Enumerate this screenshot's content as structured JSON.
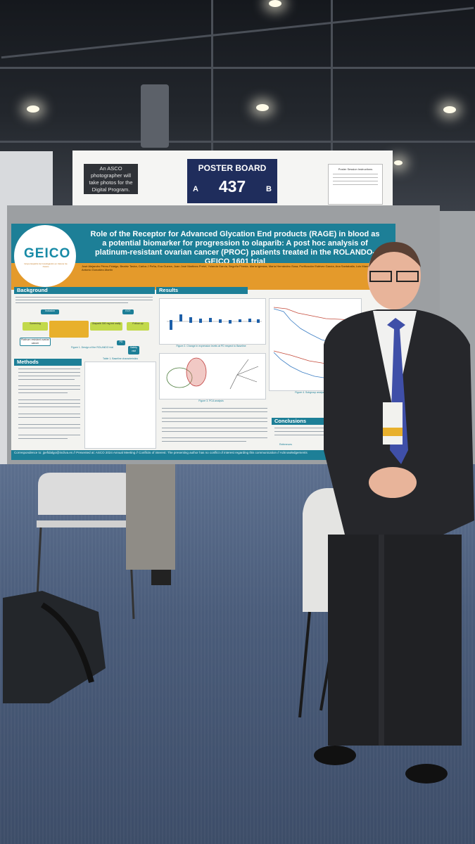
{
  "header_board": {
    "photo_note": "An ASCO photographer will take photos for the Digital Program.",
    "board_title": "POSTER BOARD",
    "board_number": "437",
    "left_letter": "A",
    "right_letter": "B",
    "notice_title": "Poster Session Instructions"
  },
  "poster": {
    "logo": "GEICO",
    "logo_tagline": "Grupo Español de Investigación en Cáncer de Ovario",
    "title": "Role of the Receptor for Advanced Glycation End products (RAGE) in blood as a potential biomarker for progression to olaparib: A post hoc analysis of platinum-resistant ovarian cancer (PROC) patients treated in the ROLANDO-GEICO 1601 trial",
    "authors": "José Alejandro Pérez-Fidalgo, Beatriz Tavira, Carlos J Peña, Eva Guerra, Juan José Martinez-Pretel, Yolanda García, Begoña Pineda, María Iglesias, María Hernández-Sosa, Purificación Estévez García, Ana Santaballa, Luis Manso Sánchez, Antonio González-Martín",
    "sections": {
      "background": "Background",
      "methods": "Methods",
      "results": "Results",
      "conclusions": "Conclusions",
      "references": "References"
    },
    "flow": {
      "inclusion": "Inclusion",
      "eot": "EOT",
      "screening": "Screening",
      "pd": "PD",
      "follow_up": "Follow-up",
      "platinum_resistant": "Platinum resistant ovarian cancer",
      "safety_visit": "Safety visit",
      "olaparib_dose": "Olaparib 300 mg bid orally"
    },
    "captions": {
      "figure1": "Figure 1. Design of the ROLANDO trial",
      "figure2": "Figure 2. Change in expression levels at PD respect to Baseline",
      "table1": "Table 1. Baseline characteristics",
      "figure3": "Figure 3. PCA analysis",
      "figure4": "Figure 4. Subgroup analysis"
    },
    "footer": "Correspondence to: jpefidalgo@incliva.es // Presented at: ASCO 2024 Annual Meeting // Conflicts of interest: The presenting author has no conflict of interest regarding this communication // Acknowledgements"
  }
}
